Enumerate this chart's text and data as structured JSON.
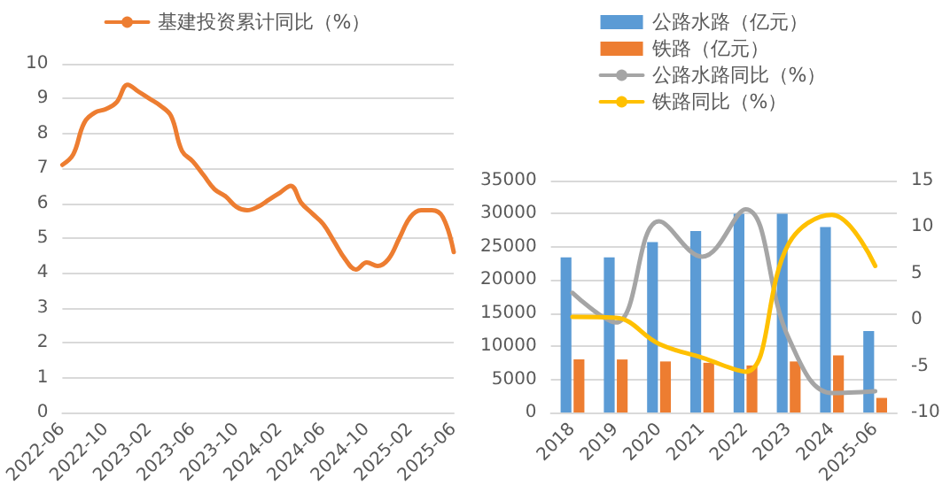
{
  "chart_data": [
    {
      "type": "line",
      "categories": [
        "2022-06",
        null,
        null,
        null,
        "2022-10",
        null,
        null,
        null,
        "2023-02",
        null,
        null,
        null,
        "2023-06",
        null,
        null,
        null,
        "2023-10",
        null,
        null,
        null,
        "2024-02",
        null,
        null,
        null,
        "2024-06",
        null,
        null,
        null,
        "2024-10",
        null,
        null,
        null,
        "2025-02",
        null,
        null,
        null,
        "2025-06"
      ],
      "series": [
        {
          "name": "基建投资累计同比（%）",
          "color": "#ed7d31",
          "values": [
            7.1,
            7.4,
            8.3,
            8.6,
            8.7,
            8.9,
            9.4,
            9.2,
            9.0,
            8.8,
            8.5,
            7.5,
            7.2,
            6.8,
            6.4,
            6.2,
            5.9,
            5.8,
            5.9,
            6.1,
            6.3,
            6.5,
            6.0,
            5.7,
            5.4,
            4.9,
            4.4,
            4.1,
            4.3,
            4.2,
            4.4,
            5.0,
            5.6,
            5.8,
            5.8,
            5.6,
            4.6
          ]
        }
      ],
      "ylim": [
        0,
        10
      ],
      "yticks": [
        0,
        1,
        2,
        3,
        4,
        5,
        6,
        7,
        8,
        9,
        10
      ],
      "grid": "y",
      "legend": "top",
      "marker": "none",
      "line_style": "solid"
    },
    {
      "type": "bar",
      "categories": [
        "2018",
        "2019",
        "2020",
        "2021",
        "2022",
        "2023",
        "2024",
        "2025-06"
      ],
      "series": [
        {
          "name": "公路水路（亿元）",
          "color": "#5b9bd5",
          "values": [
            23400,
            23400,
            25700,
            27400,
            30000,
            30000,
            28000,
            12300
          ]
        },
        {
          "name": "铁路（亿元）",
          "color": "#ed7d31",
          "values": [
            8000,
            8000,
            7700,
            7500,
            7100,
            7700,
            8600,
            2200
          ]
        },
        {
          "name": "公路水路同比（%）",
          "type": "line",
          "axis": "y2",
          "color": "#a5a5a5",
          "values": [
            2.9,
            -0.3,
            10.6,
            6.8,
            11.9,
            -2.0,
            -7.9,
            -7.7
          ]
        },
        {
          "name": "铁路同比（%）",
          "type": "line",
          "axis": "y2",
          "color": "#ffc000",
          "values": [
            0.3,
            0.2,
            -2.6,
            -4.1,
            -5.6,
            8.2,
            11.3,
            5.8
          ]
        }
      ],
      "ylim": [
        0,
        35000
      ],
      "yticks": [
        0,
        5000,
        10000,
        15000,
        20000,
        25000,
        30000,
        35000
      ],
      "y2lim": [
        -10,
        15
      ],
      "y2ticks": [
        -10,
        -5,
        0,
        5,
        10,
        15
      ],
      "grid": "y",
      "legend": "top",
      "marker": "none",
      "line_style": "solid"
    }
  ]
}
